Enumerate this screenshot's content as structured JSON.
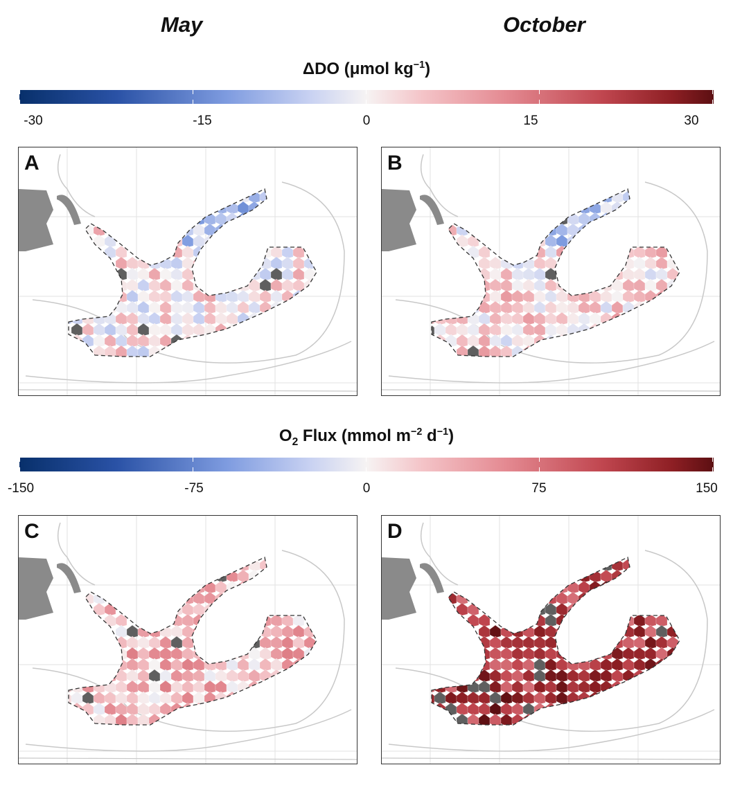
{
  "columns": {
    "left": "May",
    "right": "October"
  },
  "colorbars": [
    {
      "title_main": "ΔDO (μmol kg",
      "title_sup": "−1",
      "title_end": ")",
      "ticks": [
        "-30",
        "-15",
        "0",
        "15",
        "30"
      ]
    },
    {
      "title_pre": "O",
      "title_sub": "2",
      "title_mid": " Flux (mmol m",
      "title_sup1": "−2",
      "title_mid2": " d",
      "title_sup2": "−1",
      "title_end": ")",
      "ticks": [
        "-150",
        "-75",
        "0",
        "75",
        "150"
      ]
    }
  ],
  "panels": [
    {
      "label": "A",
      "variable": "ΔDO",
      "month": "May",
      "fill_level": 0.05
    },
    {
      "label": "B",
      "variable": "ΔDO",
      "month": "October",
      "fill_level": 0.1
    },
    {
      "label": "C",
      "variable": "O2 Flux",
      "month": "May",
      "fill_level": 0.2
    },
    {
      "label": "D",
      "variable": "O2 Flux",
      "month": "October",
      "fill_level": 0.75
    }
  ],
  "colors": {
    "negative": "#08306b",
    "neutral": "#f6f3f3",
    "positive": "#5c0f12",
    "missing": "#5f5f5f",
    "land": "#8a8a8a"
  }
}
